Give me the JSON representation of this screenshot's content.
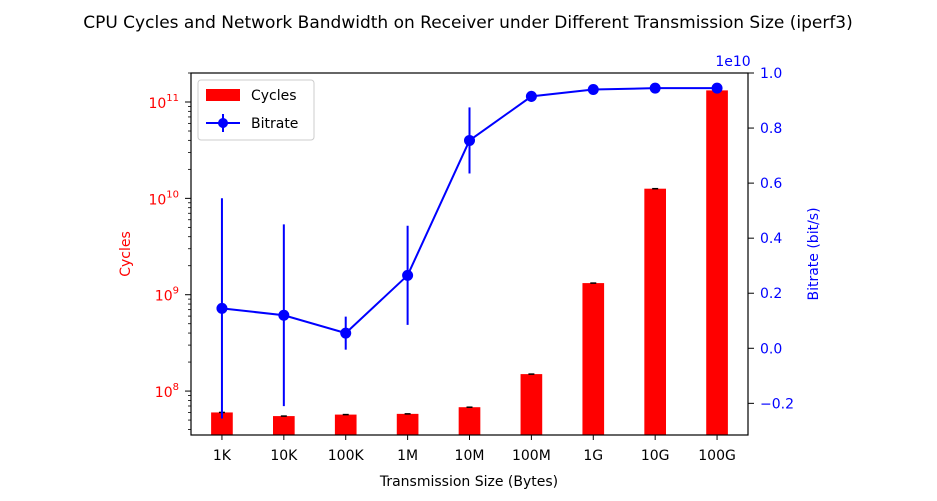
{
  "chart_data": {
    "type": "bar+line",
    "title": "CPU Cycles and Network Bandwidth on Receiver under Different Transmission Size (iperf3)",
    "xlabel": "Transmission Size (Bytes)",
    "categories": [
      "1K",
      "10K",
      "100K",
      "1M",
      "10M",
      "100M",
      "1G",
      "10G",
      "100G"
    ],
    "left_axis": {
      "label": "Cycles",
      "scale": "log",
      "ylim": [
        35000000.0,
        200000000000.0
      ],
      "tick_values": [
        100000000.0,
        1000000000.0,
        10000000000.0,
        100000000000.0
      ],
      "tick_exponents": [
        "8",
        "9",
        "10",
        "11"
      ],
      "color": "#ff0000"
    },
    "right_axis": {
      "label": "Bitrate (bit/s)",
      "scale": "linear",
      "ylim": [
        -0.315,
        1.0
      ],
      "multiplier": "1e10",
      "ticks": [
        "−0.2",
        "0.0",
        "0.2",
        "0.4",
        "0.6",
        "0.8",
        "1.0"
      ],
      "tick_values": [
        -0.2,
        0.0,
        0.2,
        0.4,
        0.6,
        0.8,
        1.0
      ],
      "color": "#0000ff"
    },
    "series": [
      {
        "name": "Cycles",
        "type": "bar",
        "axis": "left",
        "color": "#ff0000",
        "values": [
          60000000.0,
          55000000.0,
          57000000.0,
          58000000.0,
          68000000.0,
          150000000.0,
          1320000000.0,
          12600000000.0,
          132000000000.0
        ]
      },
      {
        "name": "Bitrate",
        "type": "line",
        "axis": "right",
        "color": "#0000ff",
        "values": [
          0.145,
          0.12,
          0.055,
          0.265,
          0.755,
          0.915,
          0.94,
          0.945,
          0.945
        ],
        "errors": [
          0.4,
          0.33,
          0.06,
          0.18,
          0.12,
          0.02,
          0.005,
          0.003,
          0.003
        ]
      }
    ],
    "legend": {
      "position": "top-left",
      "entries": [
        "Cycles",
        "Bitrate"
      ]
    },
    "grid": false
  }
}
